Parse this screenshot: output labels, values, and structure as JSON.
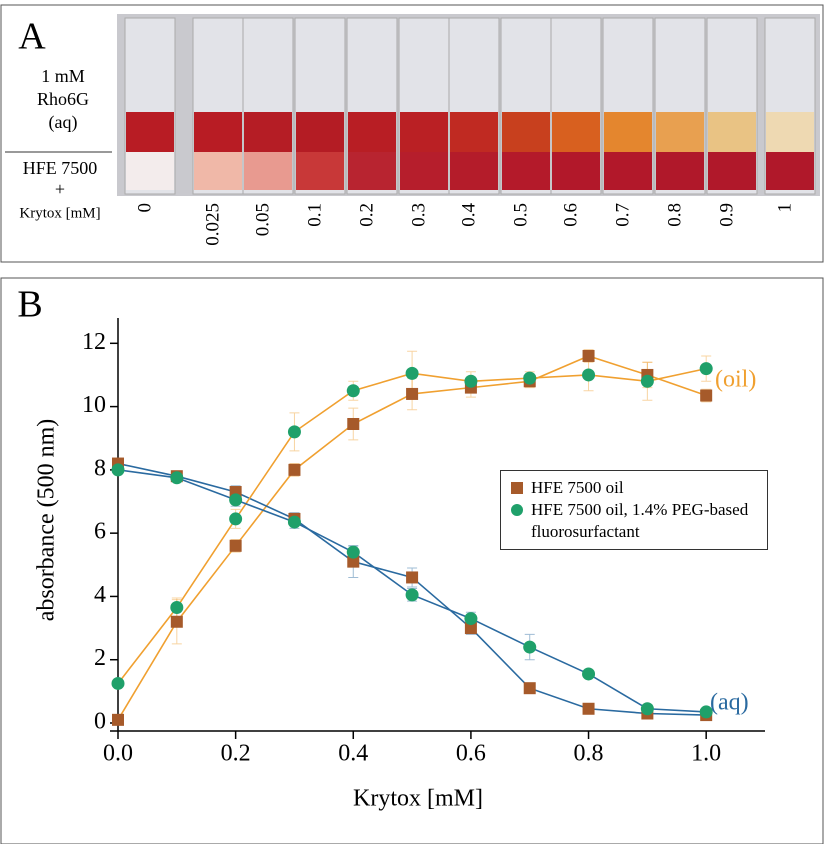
{
  "panel_a": {
    "letter": "A",
    "aq_label": [
      "1 mM",
      "Rho6G",
      "(aq)"
    ],
    "oil_label": [
      "HFE 7500",
      "+"
    ],
    "krytox_label": "Krytox  [mM]",
    "concentrations": [
      "0",
      "0.025",
      "0.05",
      "0.1",
      "0.2",
      "0.3",
      "0.4",
      "0.5",
      "0.6",
      "0.7",
      "0.8",
      "0.9",
      "1"
    ]
  },
  "chart_data": {
    "type": "line",
    "letter": "B",
    "x_label": "Krytox [mM]",
    "y_label": "absorbance (500 nm)",
    "x": [
      0,
      0.1,
      0.2,
      0.3,
      0.4,
      0.5,
      0.6,
      0.7,
      0.8,
      0.9,
      1.0
    ],
    "xlim": [
      0,
      1.1
    ],
    "ylim": [
      0,
      12.8
    ],
    "xticks": [
      {
        "value": 0,
        "label": "0.0"
      },
      0.2,
      0.4,
      0.6,
      0.8,
      {
        "value": 1.0,
        "label": "1.0"
      }
    ],
    "yticks": [
      0,
      2,
      4,
      6,
      8,
      10,
      12
    ],
    "phase_colors": {
      "oil": "#f0a030",
      "aq": "#2a6aa0"
    },
    "annotations": {
      "oil": "(oil)",
      "aq": "(aq)"
    },
    "series": [
      {
        "name": "HFE 7500 oil",
        "color": "#a65a2a",
        "marker": "square",
        "oil": {
          "values": [
            0.1,
            3.2,
            5.6,
            8.0,
            9.45,
            10.4,
            10.6,
            10.8,
            11.6,
            11.0,
            10.35
          ],
          "errors": [
            0.05,
            0.7,
            0.2,
            0.2,
            0.5,
            0.5,
            0.3,
            0.2,
            0.2,
            0.4,
            0.2
          ]
        },
        "aq": {
          "values": [
            8.2,
            7.8,
            7.3,
            6.45,
            5.1,
            4.6,
            3.0,
            1.1,
            0.45,
            0.3,
            0.25
          ],
          "errors": [
            0.1,
            0.1,
            0.2,
            0.2,
            0.5,
            0.3,
            0.2,
            0.1,
            0.1,
            0.1,
            0.1
          ]
        }
      },
      {
        "name": "HFE 7500 oil, 1.4% PEG-based fluorosurfactant",
        "color": "#1fa06a",
        "marker": "circle",
        "oil": {
          "values": [
            1.25,
            3.65,
            6.45,
            9.2,
            10.5,
            11.05,
            10.8,
            10.9,
            11.0,
            10.8,
            11.2
          ],
          "errors": [
            0.1,
            0.3,
            0.3,
            0.6,
            0.3,
            0.7,
            0.3,
            0.2,
            0.5,
            0.6,
            0.4
          ]
        },
        "aq": {
          "values": [
            8.0,
            7.75,
            7.05,
            6.35,
            5.4,
            4.05,
            3.3,
            2.4,
            1.55,
            0.45,
            0.35
          ],
          "errors": [
            0.1,
            0.1,
            0.2,
            0.2,
            0.2,
            0.2,
            0.2,
            0.4,
            0.1,
            0.1,
            0.1
          ]
        }
      }
    ]
  }
}
